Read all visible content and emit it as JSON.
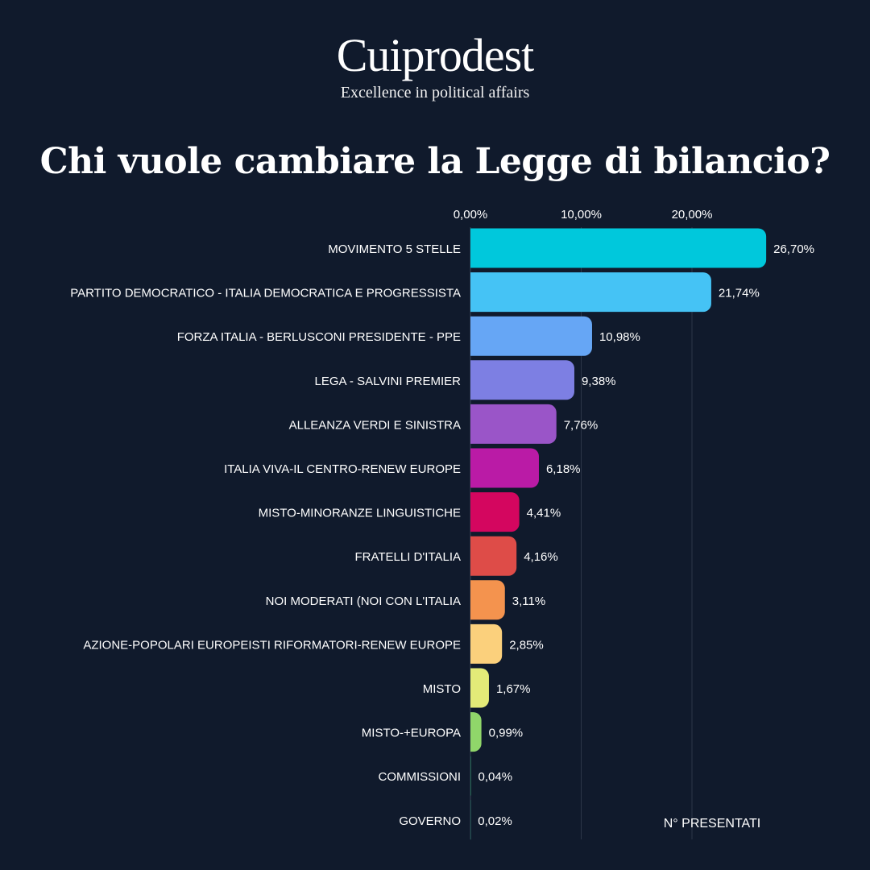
{
  "brand": {
    "name": "Cuiprodest",
    "tagline": "Excellence in political affairs"
  },
  "chart_data": {
    "type": "bar",
    "orientation": "horizontal",
    "title": "Chi vuole cambiare la Legge di bilancio?",
    "xlabel": "N° PRESENTATI",
    "ylabel": "",
    "xlim": [
      0,
      30
    ],
    "ticks": [
      {
        "value": 0,
        "label": "0,00%"
      },
      {
        "value": 10,
        "label": "10,00%"
      },
      {
        "value": 20,
        "label": "20,00%"
      }
    ],
    "categories": [
      "MOVIMENTO 5 STELLE",
      "PARTITO DEMOCRATICO - ITALIA DEMOCRATICA E PROGRESSISTA",
      "FORZA ITALIA - BERLUSCONI PRESIDENTE - PPE",
      "LEGA - SALVINI PREMIER",
      "ALLEANZA VERDI E SINISTRA",
      "ITALIA VIVA-IL CENTRO-RENEW EUROPE",
      "MISTO-MINORANZE LINGUISTICHE",
      "FRATELLI D'ITALIA",
      "NOI MODERATI (NOI CON L'ITALIA",
      "AZIONE-POPOLARI EUROPEISTI RIFORMATORI-RENEW EUROPE",
      "MISTO",
      "MISTO-+EUROPA",
      "COMMISSIONI",
      "GOVERNO"
    ],
    "values": [
      26.7,
      21.74,
      10.98,
      9.38,
      7.76,
      6.18,
      4.41,
      4.16,
      3.11,
      2.85,
      1.67,
      0.99,
      0.04,
      0.02
    ],
    "value_labels": [
      "26,70%",
      "21,74%",
      "10,98%",
      "9,38%",
      "7,76%",
      "6,18%",
      "4,41%",
      "4,16%",
      "3,11%",
      "2,85%",
      "1,67%",
      "0,99%",
      "0,04%",
      "0,02%"
    ],
    "colors": [
      "#00c8dc",
      "#45c3f5",
      "#66a6f5",
      "#7d7fe3",
      "#9a55c8",
      "#ba1ba6",
      "#d4065f",
      "#de4c48",
      "#f4934e",
      "#fbd07c",
      "#e3ea78",
      "#90d66a",
      "#2f9e6a",
      "#2a7f6a"
    ],
    "grid": true
  },
  "colors": {
    "background": "#101a2c",
    "gridline": "#2c3648",
    "text": "#ffffff"
  }
}
